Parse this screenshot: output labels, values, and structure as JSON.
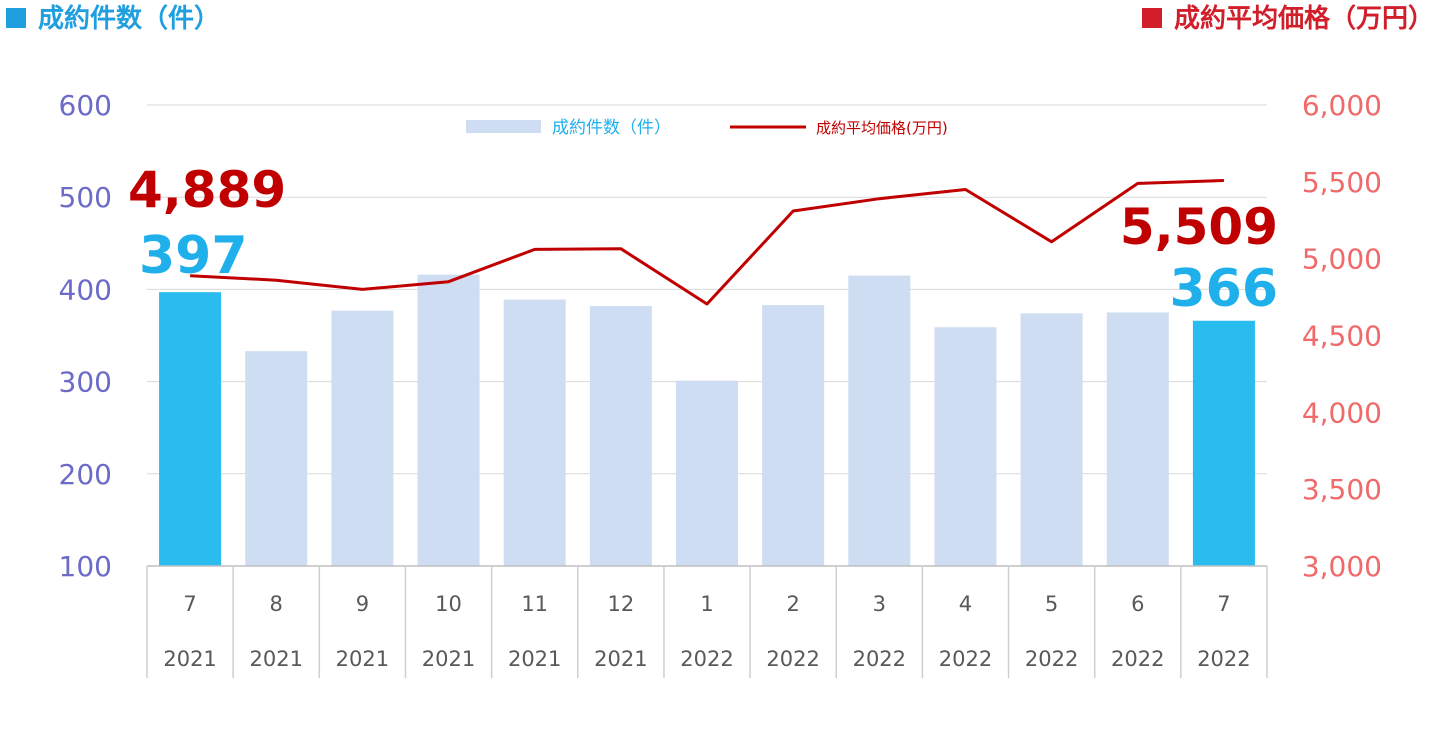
{
  "header": {
    "left_title": "成約件数（件）",
    "right_title": "成約平均価格（万円）",
    "left_color": "#1f9fe0",
    "right_color": "#d01f2a"
  },
  "chart_data": {
    "type": "bar",
    "categories": [
      {
        "month": "7",
        "year": "2021"
      },
      {
        "month": "8",
        "year": "2021"
      },
      {
        "month": "9",
        "year": "2021"
      },
      {
        "month": "10",
        "year": "2021"
      },
      {
        "month": "11",
        "year": "2021"
      },
      {
        "month": "12",
        "year": "2021"
      },
      {
        "month": "1",
        "year": "2022"
      },
      {
        "month": "2",
        "year": "2022"
      },
      {
        "month": "3",
        "year": "2022"
      },
      {
        "month": "4",
        "year": "2022"
      },
      {
        "month": "5",
        "year": "2022"
      },
      {
        "month": "6",
        "year": "2022"
      },
      {
        "month": "7",
        "year": "2022"
      }
    ],
    "series": [
      {
        "name": "成約件数（件）",
        "type": "bar",
        "axis": "left",
        "values": [
          397,
          333,
          377,
          416,
          389,
          382,
          301,
          383,
          415,
          359,
          374,
          375,
          366
        ],
        "color": "#cfddf2",
        "highlight_color": "#2bbcef",
        "highlight_indices": [
          0,
          12
        ]
      },
      {
        "name": "成約平均価格(万円)",
        "type": "line",
        "axis": "right",
        "values": [
          4889,
          4860,
          4800,
          4850,
          5060,
          5065,
          4705,
          5310,
          5390,
          5450,
          5110,
          5490,
          5509
        ],
        "color": "#c00000"
      }
    ],
    "left_axis": {
      "ylim": [
        100,
        600
      ],
      "ticks": [
        "100",
        "200",
        "300",
        "400",
        "500",
        "600"
      ],
      "color": "#6c6cc8"
    },
    "right_axis": {
      "ylim": [
        3000,
        6000
      ],
      "ticks": [
        "3,000",
        "3,500",
        "4,000",
        "4,500",
        "5,000",
        "5,500",
        "6,000"
      ],
      "color": "#f06a6a"
    },
    "annotations": [
      {
        "index": 0,
        "series": "line",
        "text": "4,889",
        "color": "#c00000"
      },
      {
        "index": 0,
        "series": "bar",
        "text": "397",
        "color": "#1fb0ec"
      },
      {
        "index": 12,
        "series": "line",
        "text": "5,509",
        "color": "#c00000"
      },
      {
        "index": 12,
        "series": "bar",
        "text": "366",
        "color": "#1fb0ec"
      }
    ],
    "legend": {
      "position": "top-center"
    },
    "grid": true
  }
}
